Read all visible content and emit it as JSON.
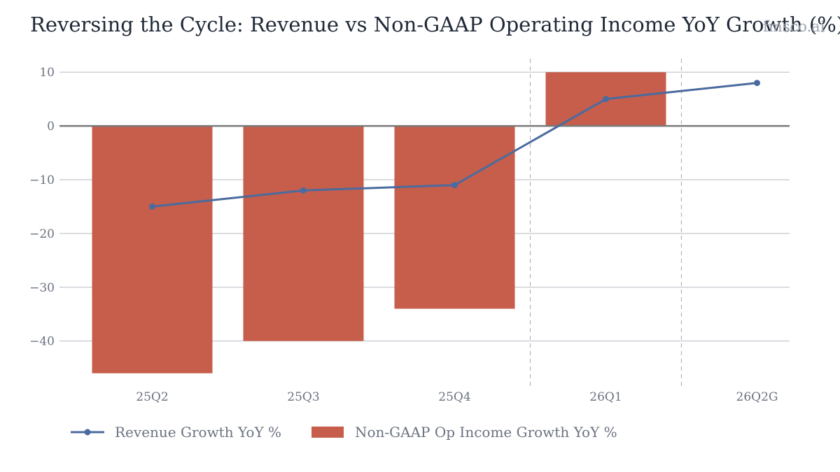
{
  "chart_data": {
    "type": "bar",
    "title": "Reversing the Cycle: Revenue vs Non-GAAP Operating Income YoY Growth (%)",
    "xlabel": "",
    "ylabel": "",
    "categories": [
      "25Q2",
      "25Q3",
      "25Q4",
      "26Q1",
      "26Q2G"
    ],
    "ylim": [
      -48.5,
      12.5
    ],
    "yticks": [
      10,
      0,
      -10,
      -20,
      -30,
      -40
    ],
    "grid": true,
    "legend_position": "bottom-left",
    "vertical_separators_after": [
      "25Q4",
      "26Q1"
    ],
    "series": [
      {
        "name": "Revenue Growth YoY %",
        "type": "line",
        "color": "#4a6b9f",
        "values": [
          -15,
          -12,
          -11,
          5,
          8
        ]
      },
      {
        "name": "Non-GAAP Op Income Growth YoY %",
        "type": "bar",
        "color": "#c75e4b",
        "values": [
          -46,
          -40,
          -34,
          10,
          null
        ]
      }
    ]
  },
  "watermark": "fmsco.ai",
  "colors": {
    "text": "#1f2937",
    "tick_text": "#6b7280",
    "grid": "#c4c8ce",
    "zero_line": "#7a7a7a",
    "separator": "#b0b4ba"
  }
}
